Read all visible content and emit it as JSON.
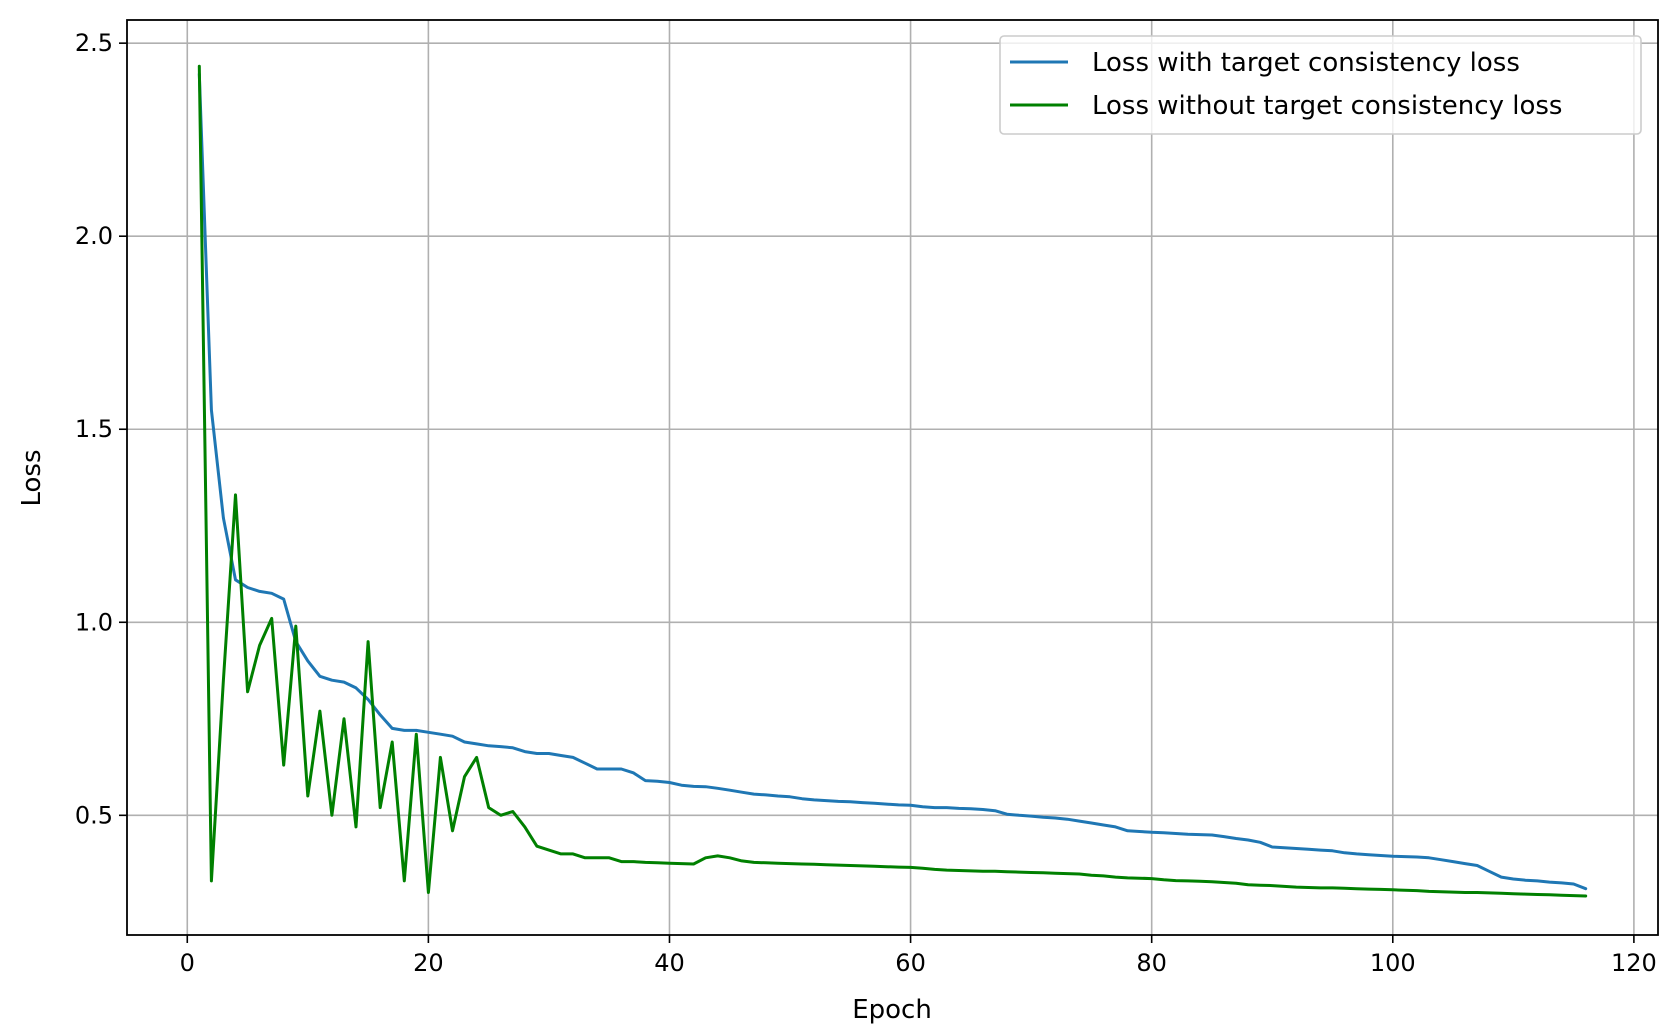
{
  "chart_data": {
    "type": "line",
    "title": "",
    "xlabel": "Epoch",
    "ylabel": "Loss",
    "xlim": [
      -5,
      122
    ],
    "ylim": [
      0.19,
      2.56
    ],
    "xticks": [
      0,
      20,
      40,
      60,
      80,
      100,
      120
    ],
    "xtick_labels": [
      "0",
      "20",
      "40",
      "60",
      "80",
      "100",
      "120"
    ],
    "yticks": [
      0.5,
      1.0,
      1.5,
      2.0,
      2.5
    ],
    "ytick_labels": [
      "0.5",
      "1.0",
      "1.5",
      "2.0",
      "2.5"
    ],
    "grid": true,
    "legend_position": "top-right",
    "series": [
      {
        "name": "Loss with target consistency loss",
        "color": "#1f77b4",
        "x": [
          1,
          2,
          3,
          4,
          5,
          6,
          7,
          8,
          9,
          10,
          11,
          12,
          13,
          14,
          15,
          16,
          17,
          18,
          19,
          20,
          21,
          22,
          23,
          24,
          25,
          26,
          27,
          28,
          29,
          30,
          31,
          32,
          33,
          34,
          35,
          36,
          37,
          38,
          39,
          40,
          41,
          42,
          43,
          44,
          45,
          46,
          47,
          48,
          49,
          50,
          51,
          52,
          53,
          54,
          55,
          56,
          57,
          58,
          59,
          60,
          61,
          62,
          63,
          64,
          65,
          66,
          67,
          68,
          69,
          70,
          71,
          72,
          73,
          74,
          75,
          76,
          77,
          78,
          79,
          80,
          81,
          82,
          83,
          84,
          85,
          86,
          87,
          88,
          89,
          90,
          91,
          92,
          93,
          94,
          95,
          96,
          97,
          98,
          99,
          100,
          101,
          102,
          103,
          104,
          105,
          106,
          107,
          108,
          109,
          110,
          111,
          112,
          113,
          114,
          115,
          116
        ],
        "values": [
          2.42,
          1.55,
          1.27,
          1.11,
          1.09,
          1.08,
          1.075,
          1.06,
          0.95,
          0.9,
          0.86,
          0.85,
          0.845,
          0.83,
          0.8,
          0.76,
          0.725,
          0.72,
          0.72,
          0.715,
          0.71,
          0.705,
          0.69,
          0.685,
          0.68,
          0.678,
          0.675,
          0.665,
          0.66,
          0.66,
          0.655,
          0.65,
          0.635,
          0.62,
          0.62,
          0.62,
          0.61,
          0.59,
          0.588,
          0.585,
          0.578,
          0.575,
          0.574,
          0.57,
          0.565,
          0.56,
          0.555,
          0.553,
          0.55,
          0.548,
          0.543,
          0.54,
          0.538,
          0.536,
          0.535,
          0.533,
          0.531,
          0.529,
          0.527,
          0.526,
          0.522,
          0.52,
          0.52,
          0.518,
          0.517,
          0.515,
          0.512,
          0.503,
          0.5,
          0.498,
          0.495,
          0.493,
          0.49,
          0.485,
          0.48,
          0.475,
          0.47,
          0.46,
          0.458,
          0.456,
          0.455,
          0.453,
          0.451,
          0.45,
          0.449,
          0.445,
          0.44,
          0.436,
          0.43,
          0.418,
          0.416,
          0.414,
          0.412,
          0.41,
          0.408,
          0.403,
          0.4,
          0.398,
          0.396,
          0.394,
          0.393,
          0.392,
          0.39,
          0.385,
          0.38,
          0.375,
          0.37,
          0.355,
          0.34,
          0.335,
          0.332,
          0.33,
          0.327,
          0.325,
          0.322,
          0.31
        ]
      },
      {
        "name": "Loss without target consistency loss",
        "color": "#008000",
        "x": [
          1,
          2,
          3,
          4,
          5,
          6,
          7,
          8,
          9,
          10,
          11,
          12,
          13,
          14,
          15,
          16,
          17,
          18,
          19,
          20,
          21,
          22,
          23,
          24,
          25,
          26,
          27,
          28,
          29,
          30,
          31,
          32,
          33,
          34,
          35,
          36,
          37,
          38,
          39,
          40,
          41,
          42,
          43,
          44,
          45,
          46,
          47,
          48,
          49,
          50,
          51,
          52,
          53,
          54,
          55,
          56,
          57,
          58,
          59,
          60,
          61,
          62,
          63,
          64,
          65,
          66,
          67,
          68,
          69,
          70,
          71,
          72,
          73,
          74,
          75,
          76,
          77,
          78,
          79,
          80,
          81,
          82,
          83,
          84,
          85,
          86,
          87,
          88,
          89,
          90,
          91,
          92,
          93,
          94,
          95,
          96,
          97,
          98,
          99,
          100,
          101,
          102,
          103,
          104,
          105,
          106,
          107,
          108,
          109,
          110,
          111,
          112,
          113,
          114,
          115,
          116
        ],
        "values": [
          2.44,
          0.33,
          0.85,
          1.33,
          0.82,
          0.94,
          1.01,
          0.63,
          0.99,
          0.55,
          0.77,
          0.5,
          0.75,
          0.47,
          0.95,
          0.52,
          0.69,
          0.33,
          0.71,
          0.3,
          0.65,
          0.46,
          0.6,
          0.65,
          0.52,
          0.5,
          0.51,
          0.47,
          0.42,
          0.41,
          0.4,
          0.4,
          0.39,
          0.39,
          0.39,
          0.38,
          0.38,
          0.378,
          0.377,
          0.376,
          0.375,
          0.374,
          0.39,
          0.395,
          0.39,
          0.382,
          0.378,
          0.377,
          0.376,
          0.375,
          0.374,
          0.373,
          0.372,
          0.371,
          0.37,
          0.369,
          0.368,
          0.367,
          0.366,
          0.365,
          0.363,
          0.36,
          0.358,
          0.357,
          0.356,
          0.355,
          0.355,
          0.354,
          0.353,
          0.352,
          0.351,
          0.35,
          0.349,
          0.348,
          0.345,
          0.343,
          0.34,
          0.338,
          0.337,
          0.336,
          0.333,
          0.331,
          0.33,
          0.329,
          0.328,
          0.326,
          0.324,
          0.32,
          0.319,
          0.318,
          0.316,
          0.314,
          0.313,
          0.312,
          0.312,
          0.311,
          0.31,
          0.309,
          0.308,
          0.307,
          0.306,
          0.305,
          0.303,
          0.302,
          0.301,
          0.3,
          0.3,
          0.299,
          0.298,
          0.297,
          0.296,
          0.295,
          0.294,
          0.293,
          0.292,
          0.291
        ]
      }
    ]
  }
}
